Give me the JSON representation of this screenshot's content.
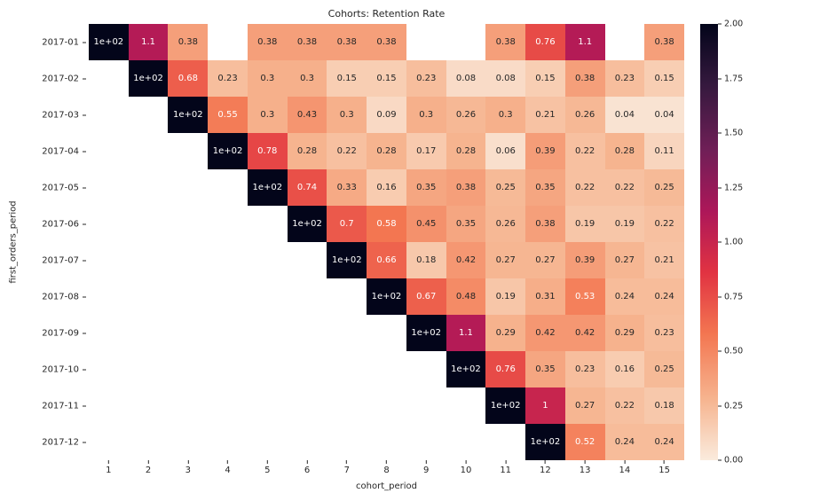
{
  "chart_data": {
    "type": "heatmap",
    "title": "Cohorts: Retention Rate",
    "xlabel": "cohort_period",
    "ylabel": "first_orders_period",
    "x_ticks": [
      "1",
      "2",
      "3",
      "4",
      "5",
      "6",
      "7",
      "8",
      "9",
      "10",
      "11",
      "12",
      "13",
      "14",
      "15"
    ],
    "y_ticks": [
      "2017-01",
      "2017-02",
      "2017-03",
      "2017-04",
      "2017-05",
      "2017-06",
      "2017-07",
      "2017-08",
      "2017-09",
      "2017-10",
      "2017-11",
      "2017-12"
    ],
    "vmin": 0,
    "vmax": 2,
    "colorbar_ticks": [
      "2.00",
      "1.75",
      "1.50",
      "1.25",
      "1.00",
      "0.75",
      "0.50",
      "0.25",
      "0.00"
    ],
    "cells": [
      [
        "1e+02",
        "1.1",
        "0.38",
        null,
        "0.38",
        "0.38",
        "0.38",
        "0.38",
        null,
        null,
        "0.38",
        "0.76",
        "1.1",
        null,
        "0.38"
      ],
      [
        null,
        "1e+02",
        "0.68",
        "0.23",
        "0.3",
        "0.3",
        "0.15",
        "0.15",
        "0.23",
        "0.08",
        "0.08",
        "0.15",
        "0.38",
        "0.23",
        "0.15"
      ],
      [
        null,
        null,
        "1e+02",
        "0.55",
        "0.3",
        "0.43",
        "0.3",
        "0.09",
        "0.3",
        "0.26",
        "0.3",
        "0.21",
        "0.26",
        "0.04",
        "0.04"
      ],
      [
        null,
        null,
        null,
        "1e+02",
        "0.78",
        "0.28",
        "0.22",
        "0.28",
        "0.17",
        "0.28",
        "0.06",
        "0.39",
        "0.22",
        "0.28",
        "0.11"
      ],
      [
        null,
        null,
        null,
        null,
        "1e+02",
        "0.74",
        "0.33",
        "0.16",
        "0.35",
        "0.38",
        "0.25",
        "0.35",
        "0.22",
        "0.22",
        "0.25"
      ],
      [
        null,
        null,
        null,
        null,
        null,
        "1e+02",
        "0.7",
        "0.58",
        "0.45",
        "0.35",
        "0.26",
        "0.38",
        "0.19",
        "0.19",
        "0.22"
      ],
      [
        null,
        null,
        null,
        null,
        null,
        null,
        "1e+02",
        "0.66",
        "0.18",
        "0.42",
        "0.27",
        "0.27",
        "0.39",
        "0.27",
        "0.21"
      ],
      [
        null,
        null,
        null,
        null,
        null,
        null,
        null,
        "1e+02",
        "0.67",
        "0.48",
        "0.19",
        "0.31",
        "0.53",
        "0.24",
        "0.24"
      ],
      [
        null,
        null,
        null,
        null,
        null,
        null,
        null,
        null,
        "1e+02",
        "1.1",
        "0.29",
        "0.42",
        "0.42",
        "0.29",
        "0.23"
      ],
      [
        null,
        null,
        null,
        null,
        null,
        null,
        null,
        null,
        null,
        "1e+02",
        "0.76",
        "0.35",
        "0.23",
        "0.16",
        "0.25"
      ],
      [
        null,
        null,
        null,
        null,
        null,
        null,
        null,
        null,
        null,
        null,
        "1e+02",
        "1",
        "0.27",
        "0.22",
        "0.18"
      ],
      [
        null,
        null,
        null,
        null,
        null,
        null,
        null,
        null,
        null,
        null,
        null,
        "1e+02",
        "0.52",
        "0.24",
        "0.24"
      ]
    ],
    "colors": {
      "background": "#ffffff",
      "text": "#262626",
      "annot_light": "#ffffff",
      "annot_dark": "#262626",
      "colormap_name": "rocket_r",
      "colormap_stops": [
        {
          "p": 0,
          "c": "#faebdd"
        },
        {
          "p": 0.14,
          "c": "#f6b48f"
        },
        {
          "p": 0.29,
          "c": "#f37651"
        },
        {
          "p": 0.43,
          "c": "#e13342"
        },
        {
          "p": 0.57,
          "c": "#ad1759"
        },
        {
          "p": 0.71,
          "c": "#701f57"
        },
        {
          "p": 0.86,
          "c": "#35193e"
        },
        {
          "p": 1,
          "c": "#03051a"
        }
      ],
      "luminance_threshold": 0.37
    }
  }
}
